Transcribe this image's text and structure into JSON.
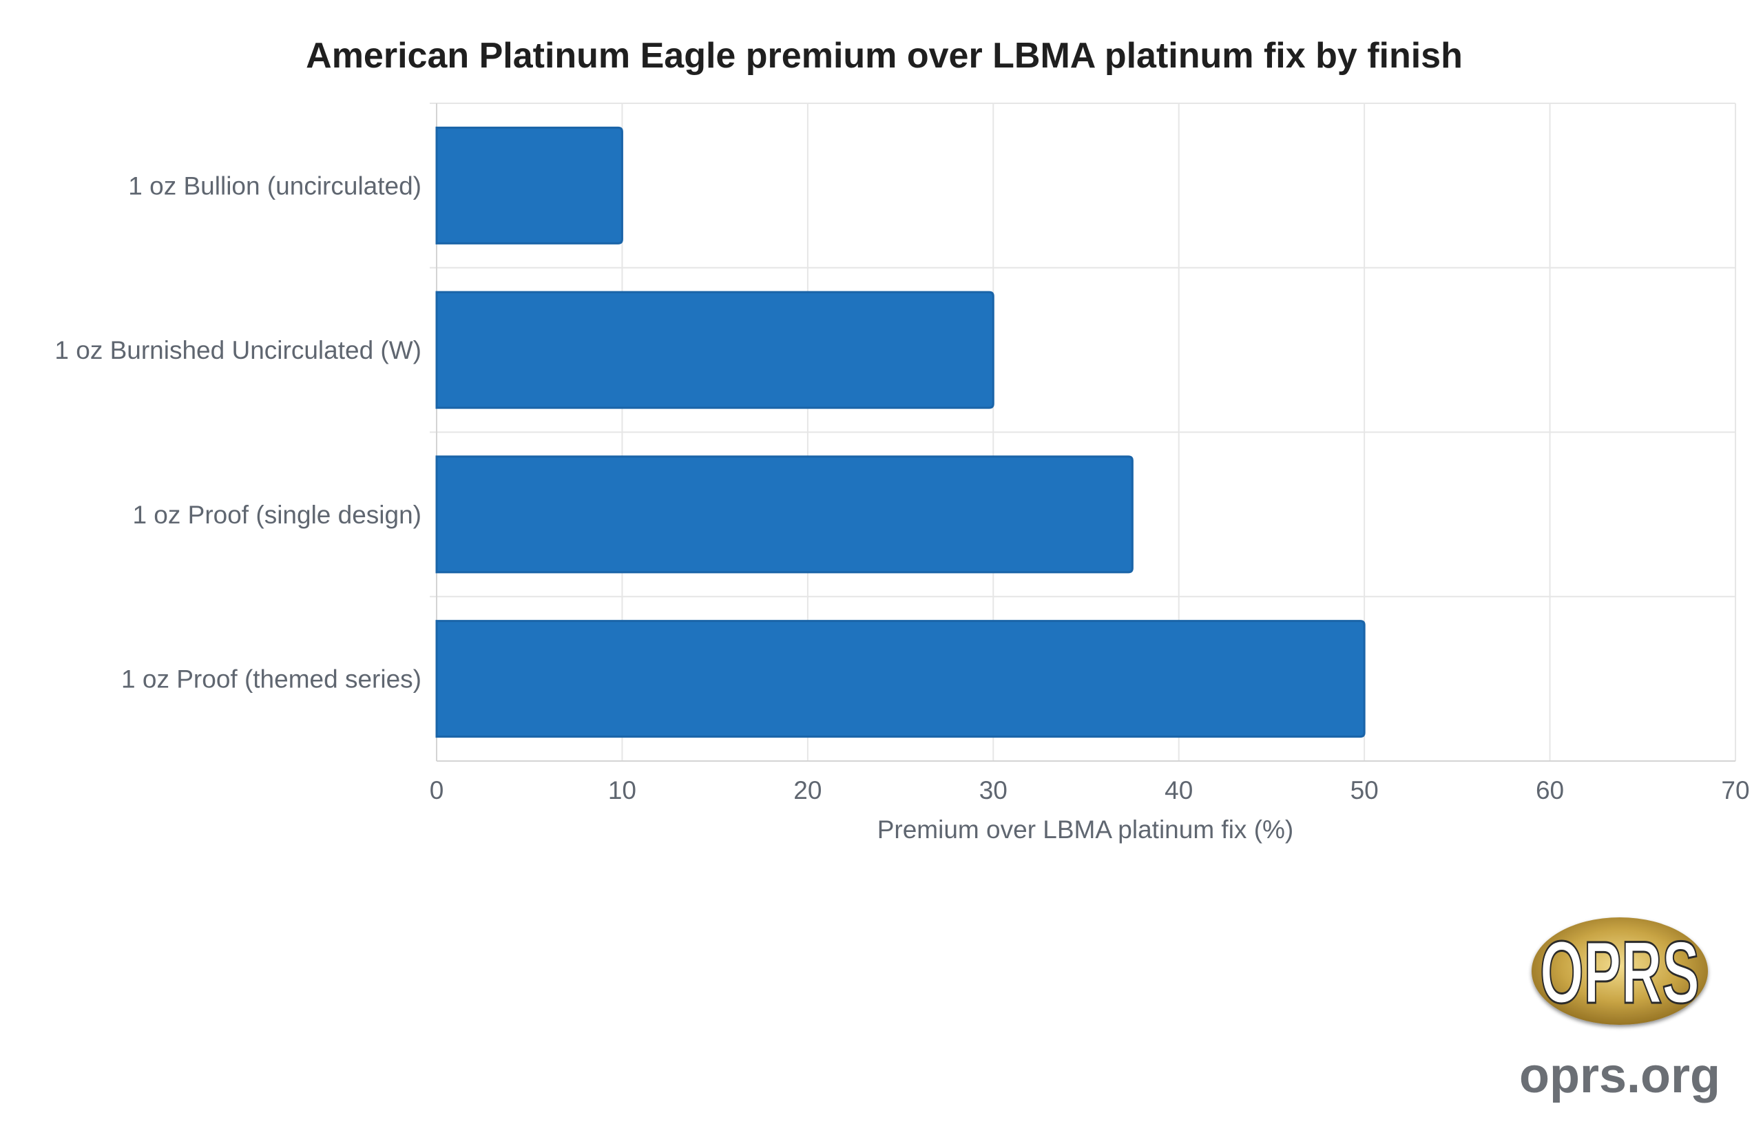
{
  "chart_data": {
    "type": "bar",
    "orientation": "horizontal",
    "title": "American Platinum Eagle premium over LBMA platinum fix by finish",
    "categories": [
      "1 oz Bullion (uncirculated)",
      "1 oz Burnished Uncirculated (W)",
      "1 oz Proof (single design)",
      "1 oz Proof (themed series)"
    ],
    "values": [
      10,
      30,
      37.5,
      50
    ],
    "xlabel": "Premium over LBMA platinum fix (%)",
    "ylabel": "",
    "xlim": [
      0,
      70
    ],
    "xticks": [
      0,
      10,
      20,
      30,
      40,
      50,
      60,
      70
    ],
    "xtick_labels": [
      "0",
      "10",
      "20",
      "30",
      "40",
      "50",
      "60",
      "70"
    ],
    "grid": true,
    "legend": "none",
    "bar_color": "#1f73be",
    "bar_edge_color": "#1a64a8"
  },
  "watermark": {
    "logo_text": "OPRS",
    "site": "oprs.org",
    "logo_gold": "#b8963a",
    "text_gray": "#6b6f75"
  }
}
